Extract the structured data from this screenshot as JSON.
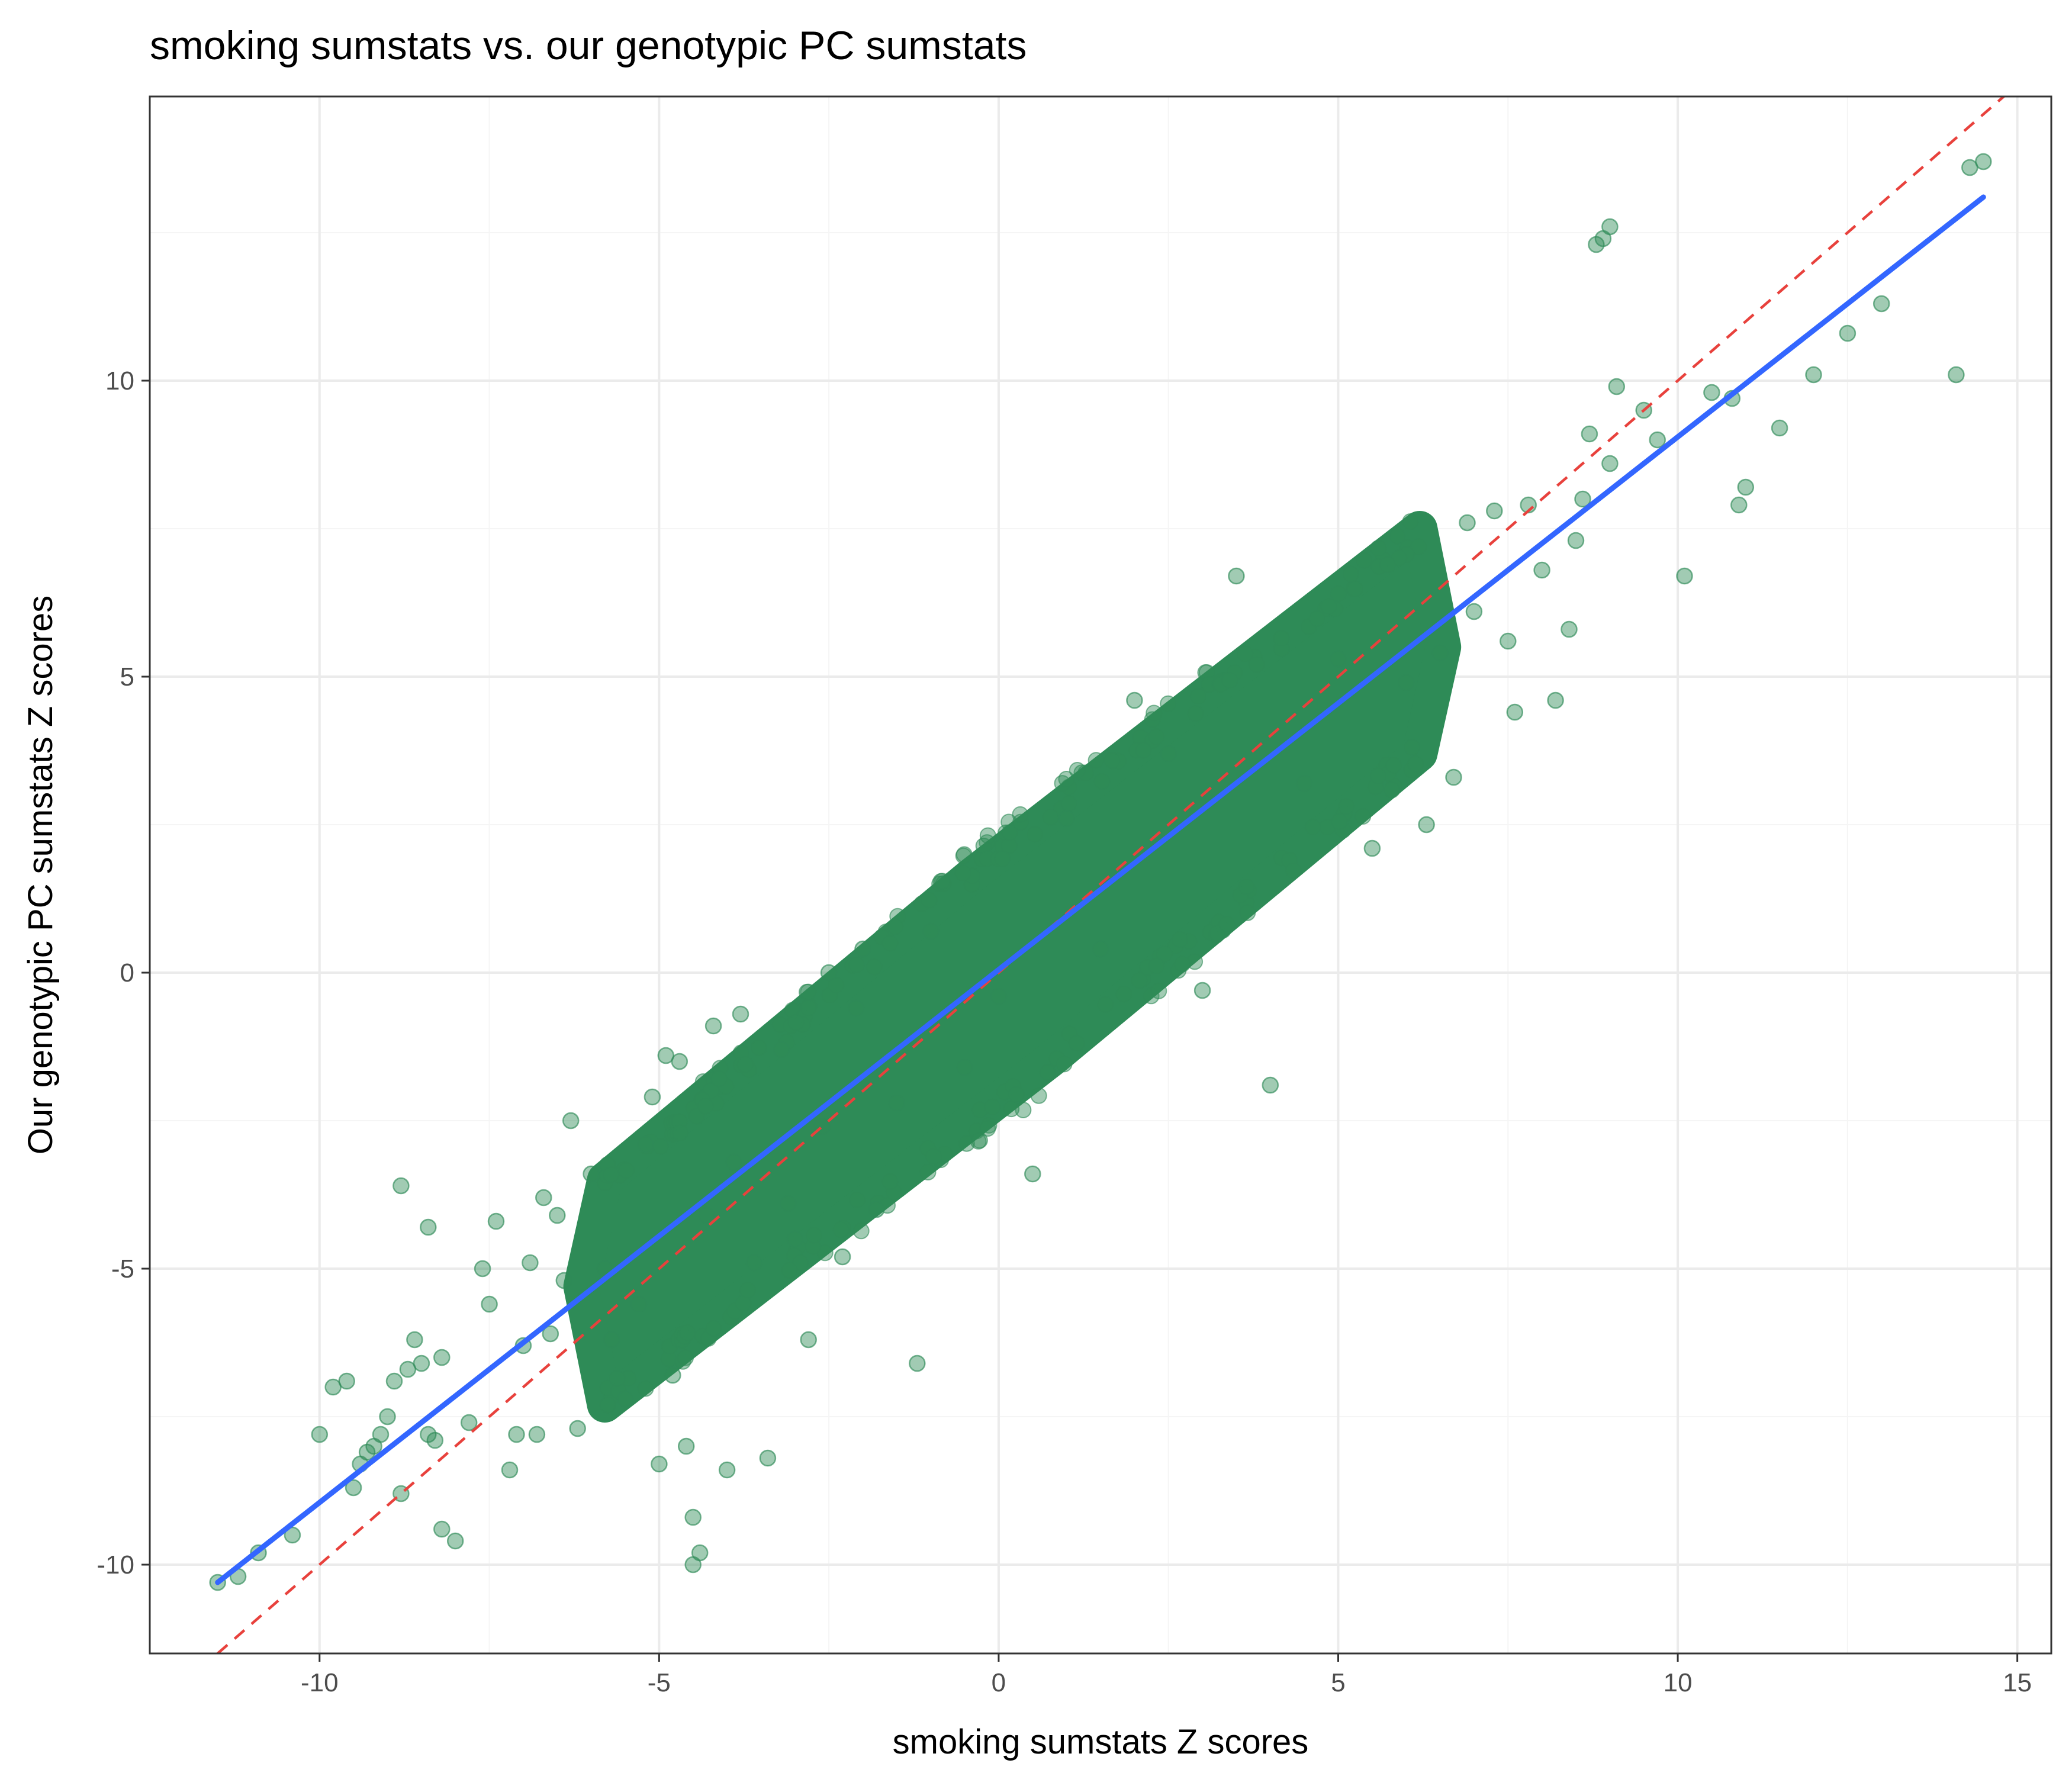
{
  "chart_data": {
    "type": "scatter",
    "title": "smoking sumstats vs. our genotypic PC sumstats",
    "xlabel": "smoking sumstats Z scores",
    "ylabel": "Our genotypic PC sumstats Z scores",
    "xlim": [
      -12.5,
      15.5
    ],
    "ylim": [
      -11.5,
      14.8
    ],
    "x_ticks": [
      -10,
      -5,
      0,
      5,
      10,
      15
    ],
    "y_ticks": [
      -10,
      -5,
      0,
      5,
      10
    ],
    "x_tick_labels": [
      "-10",
      "-5",
      "0",
      "5",
      "10",
      "15"
    ],
    "y_tick_labels": [
      "-10",
      "-5",
      "0",
      "5",
      "10"
    ],
    "grid": true,
    "legend": "none",
    "colors": {
      "points": "#2e8b57",
      "fit_line": "#3366ff",
      "reference_line": "#e8413c",
      "panel_border": "#333333",
      "grid_major": "#ebebeb",
      "grid_minor": "#f5f5f5"
    },
    "series": [
      {
        "kind": "points",
        "x": [
          -11.5,
          -11.2,
          -10.9,
          -10.4,
          -10.0,
          -9.8,
          -9.6,
          -9.5,
          -9.4,
          -9.3,
          -9.2,
          -9.1,
          -9.0,
          -8.9,
          -8.8,
          -8.8,
          -8.7,
          -8.6,
          -8.5,
          -8.4,
          -8.4,
          -8.3,
          -8.2,
          -8.2,
          -8.0,
          -7.8,
          -7.6,
          -7.5,
          -7.4,
          -7.2,
          -7.1,
          -7.0,
          -6.9,
          -6.8,
          -6.7,
          -6.6,
          -6.5,
          -6.4,
          -6.3,
          -6.2,
          -6.0,
          -5.8,
          -5.7,
          -5.5,
          -5.3,
          -5.2,
          -5.1,
          -5.0,
          -4.9,
          -4.8,
          -4.7,
          -4.6,
          -4.5,
          -4.5,
          -4.4,
          -4.3,
          -4.2,
          -4.0,
          -3.9,
          -3.8,
          -3.6,
          -3.4,
          -3.2,
          -3.1,
          -3.0,
          -2.8,
          -2.6,
          -2.5,
          -2.3,
          -2.1,
          -2.0,
          -1.8,
          -1.5,
          -1.2,
          -1.0,
          -0.5,
          0.0,
          0.5,
          1.0,
          1.5,
          2.0,
          2.5,
          3.0,
          3.5,
          4.0,
          4.5,
          5.0,
          5.5,
          6.0,
          6.3,
          6.5,
          6.7,
          6.9,
          7.0,
          7.3,
          7.5,
          7.6,
          7.8,
          8.0,
          8.2,
          8.4,
          8.5,
          8.6,
          8.7,
          8.8,
          8.9,
          9.0,
          9.0,
          9.1,
          9.5,
          9.7,
          10.1,
          10.5,
          10.8,
          10.9,
          11.0,
          11.5,
          12.0,
          12.5,
          13.0,
          14.1,
          14.3,
          14.5
        ],
        "y": [
          -10.3,
          -10.2,
          -9.8,
          -9.5,
          -7.8,
          -7.0,
          -6.9,
          -8.7,
          -8.3,
          -8.1,
          -8.0,
          -7.8,
          -7.5,
          -6.9,
          -3.6,
          -8.8,
          -6.7,
          -6.2,
          -6.6,
          -7.8,
          -4.3,
          -7.9,
          -6.5,
          -9.4,
          -9.6,
          -7.6,
          -5.0,
          -5.6,
          -4.2,
          -8.4,
          -7.8,
          -6.3,
          -4.9,
          -7.8,
          -3.8,
          -6.1,
          -4.1,
          -5.2,
          -2.5,
          -7.7,
          -3.4,
          -5.0,
          -6.2,
          -7.2,
          -5.6,
          -2.9,
          -2.1,
          -8.3,
          -1.4,
          -6.8,
          -1.5,
          -8.0,
          -10.0,
          -9.2,
          -9.8,
          -4.1,
          -0.9,
          -8.4,
          -3.2,
          -0.7,
          -4.9,
          -8.2,
          -1.3,
          -3.9,
          -4.5,
          -6.2,
          -2.6,
          0.0,
          -4.8,
          -0.6,
          0.4,
          -4.0,
          -2.2,
          -6.6,
          0.7,
          -1.6,
          -0.4,
          -3.4,
          2.6,
          0.4,
          4.6,
          3.7,
          -0.3,
          6.7,
          -1.9,
          3.2,
          5.3,
          2.1,
          4.9,
          2.5,
          5.4,
          3.3,
          7.6,
          6.1,
          7.8,
          5.6,
          4.4,
          7.9,
          6.8,
          4.6,
          5.8,
          7.3,
          8.0,
          9.1,
          12.3,
          12.4,
          8.6,
          12.6,
          9.9,
          9.5,
          9.0,
          6.7,
          9.8,
          9.7,
          7.9,
          8.2,
          9.2,
          10.1,
          10.8,
          11.3,
          10.1,
          13.6,
          13.7
        ]
      },
      {
        "kind": "cloud",
        "axis_x": [
          -5.8,
          6.2
        ],
        "axis_y": [
          -5.4,
          5.6
        ],
        "half_width_y": 1.9
      }
    ],
    "fit_line": {
      "x": [
        -11.5,
        14.5
      ],
      "y": [
        -10.3,
        13.1
      ]
    },
    "reference_line": {
      "slope": 1,
      "intercept": 0
    }
  }
}
